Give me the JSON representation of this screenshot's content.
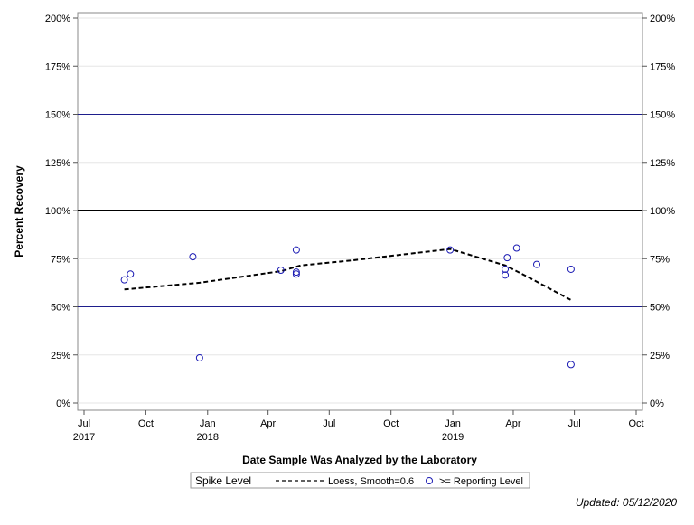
{
  "chart_data": {
    "type": "scatter",
    "title": "",
    "xlabel": "Date Sample Was Analyzed by the Laboratory",
    "ylabel": "Percent Recovery",
    "xlim": [
      "2017-07-01",
      "2019-10-01"
    ],
    "ylim": [
      0,
      200
    ],
    "y_ticks": [
      {
        "value": 0,
        "label": "0%"
      },
      {
        "value": 25,
        "label": "25%"
      },
      {
        "value": 50,
        "label": "50%"
      },
      {
        "value": 75,
        "label": "75%"
      },
      {
        "value": 100,
        "label": "100%"
      },
      {
        "value": 125,
        "label": "125%"
      },
      {
        "value": 150,
        "label": "150%"
      },
      {
        "value": 175,
        "label": "175%"
      },
      {
        "value": 200,
        "label": "200%"
      }
    ],
    "x_ticks": [
      {
        "value": "2017-07-01",
        "label": "Jul",
        "year": "2017"
      },
      {
        "value": "2017-10-01",
        "label": "Oct",
        "year": ""
      },
      {
        "value": "2018-01-01",
        "label": "Jan",
        "year": "2018"
      },
      {
        "value": "2018-04-01",
        "label": "Apr",
        "year": ""
      },
      {
        "value": "2018-07-01",
        "label": "Jul",
        "year": ""
      },
      {
        "value": "2018-10-01",
        "label": "Oct",
        "year": ""
      },
      {
        "value": "2019-01-01",
        "label": "Jan",
        "year": "2019"
      },
      {
        "value": "2019-04-01",
        "label": "Apr",
        "year": ""
      },
      {
        "value": "2019-07-01",
        "label": "Jul",
        "year": ""
      },
      {
        "value": "2019-10-01",
        "label": "Oct",
        "year": ""
      }
    ],
    "reference_lines": [
      {
        "value": 150,
        "color": "#1e1e8c",
        "style": "thin"
      },
      {
        "value": 100,
        "color": "#000000",
        "style": "thick"
      },
      {
        "value": 50,
        "color": "#1e1e8c",
        "style": "thin"
      }
    ],
    "points": [
      {
        "x": "2017-08-30",
        "y": 64
      },
      {
        "x": "2017-09-08",
        "y": 67
      },
      {
        "x": "2017-12-10",
        "y": 76
      },
      {
        "x": "2017-12-20",
        "y": 23.5
      },
      {
        "x": "2018-04-20",
        "y": 69
      },
      {
        "x": "2018-05-13",
        "y": 79.5
      },
      {
        "x": "2018-05-13",
        "y": 68
      },
      {
        "x": "2018-05-13",
        "y": 67
      },
      {
        "x": "2018-12-28",
        "y": 79.5
      },
      {
        "x": "2019-03-20",
        "y": 69.5
      },
      {
        "x": "2019-03-20",
        "y": 66.5
      },
      {
        "x": "2019-03-23",
        "y": 75.5
      },
      {
        "x": "2019-04-06",
        "y": 80.5
      },
      {
        "x": "2019-05-06",
        "y": 72
      },
      {
        "x": "2019-06-26",
        "y": 69.5
      },
      {
        "x": "2019-06-26",
        "y": 20
      }
    ],
    "loess_line": [
      {
        "x": "2017-08-30",
        "y": 59
      },
      {
        "x": "2017-12-20",
        "y": 62.5
      },
      {
        "x": "2018-04-20",
        "y": 68.5
      },
      {
        "x": "2018-05-20",
        "y": 71.5
      },
      {
        "x": "2018-08-01",
        "y": 74
      },
      {
        "x": "2018-12-28",
        "y": 80
      },
      {
        "x": "2019-03-20",
        "y": 71.5
      },
      {
        "x": "2019-04-20",
        "y": 66
      },
      {
        "x": "2019-06-26",
        "y": 53.5
      }
    ],
    "point_color": "#1a1ab3",
    "legend": {
      "title": "Spike Level",
      "position": "bottom",
      "items": [
        {
          "label": "Loess, Smooth=0.6",
          "marker": "dashed-line"
        },
        {
          "label": ">= Reporting Level",
          "marker": "open-circle"
        }
      ]
    },
    "grid": true
  },
  "footer": {
    "updated": "Updated: 05/12/2020"
  }
}
